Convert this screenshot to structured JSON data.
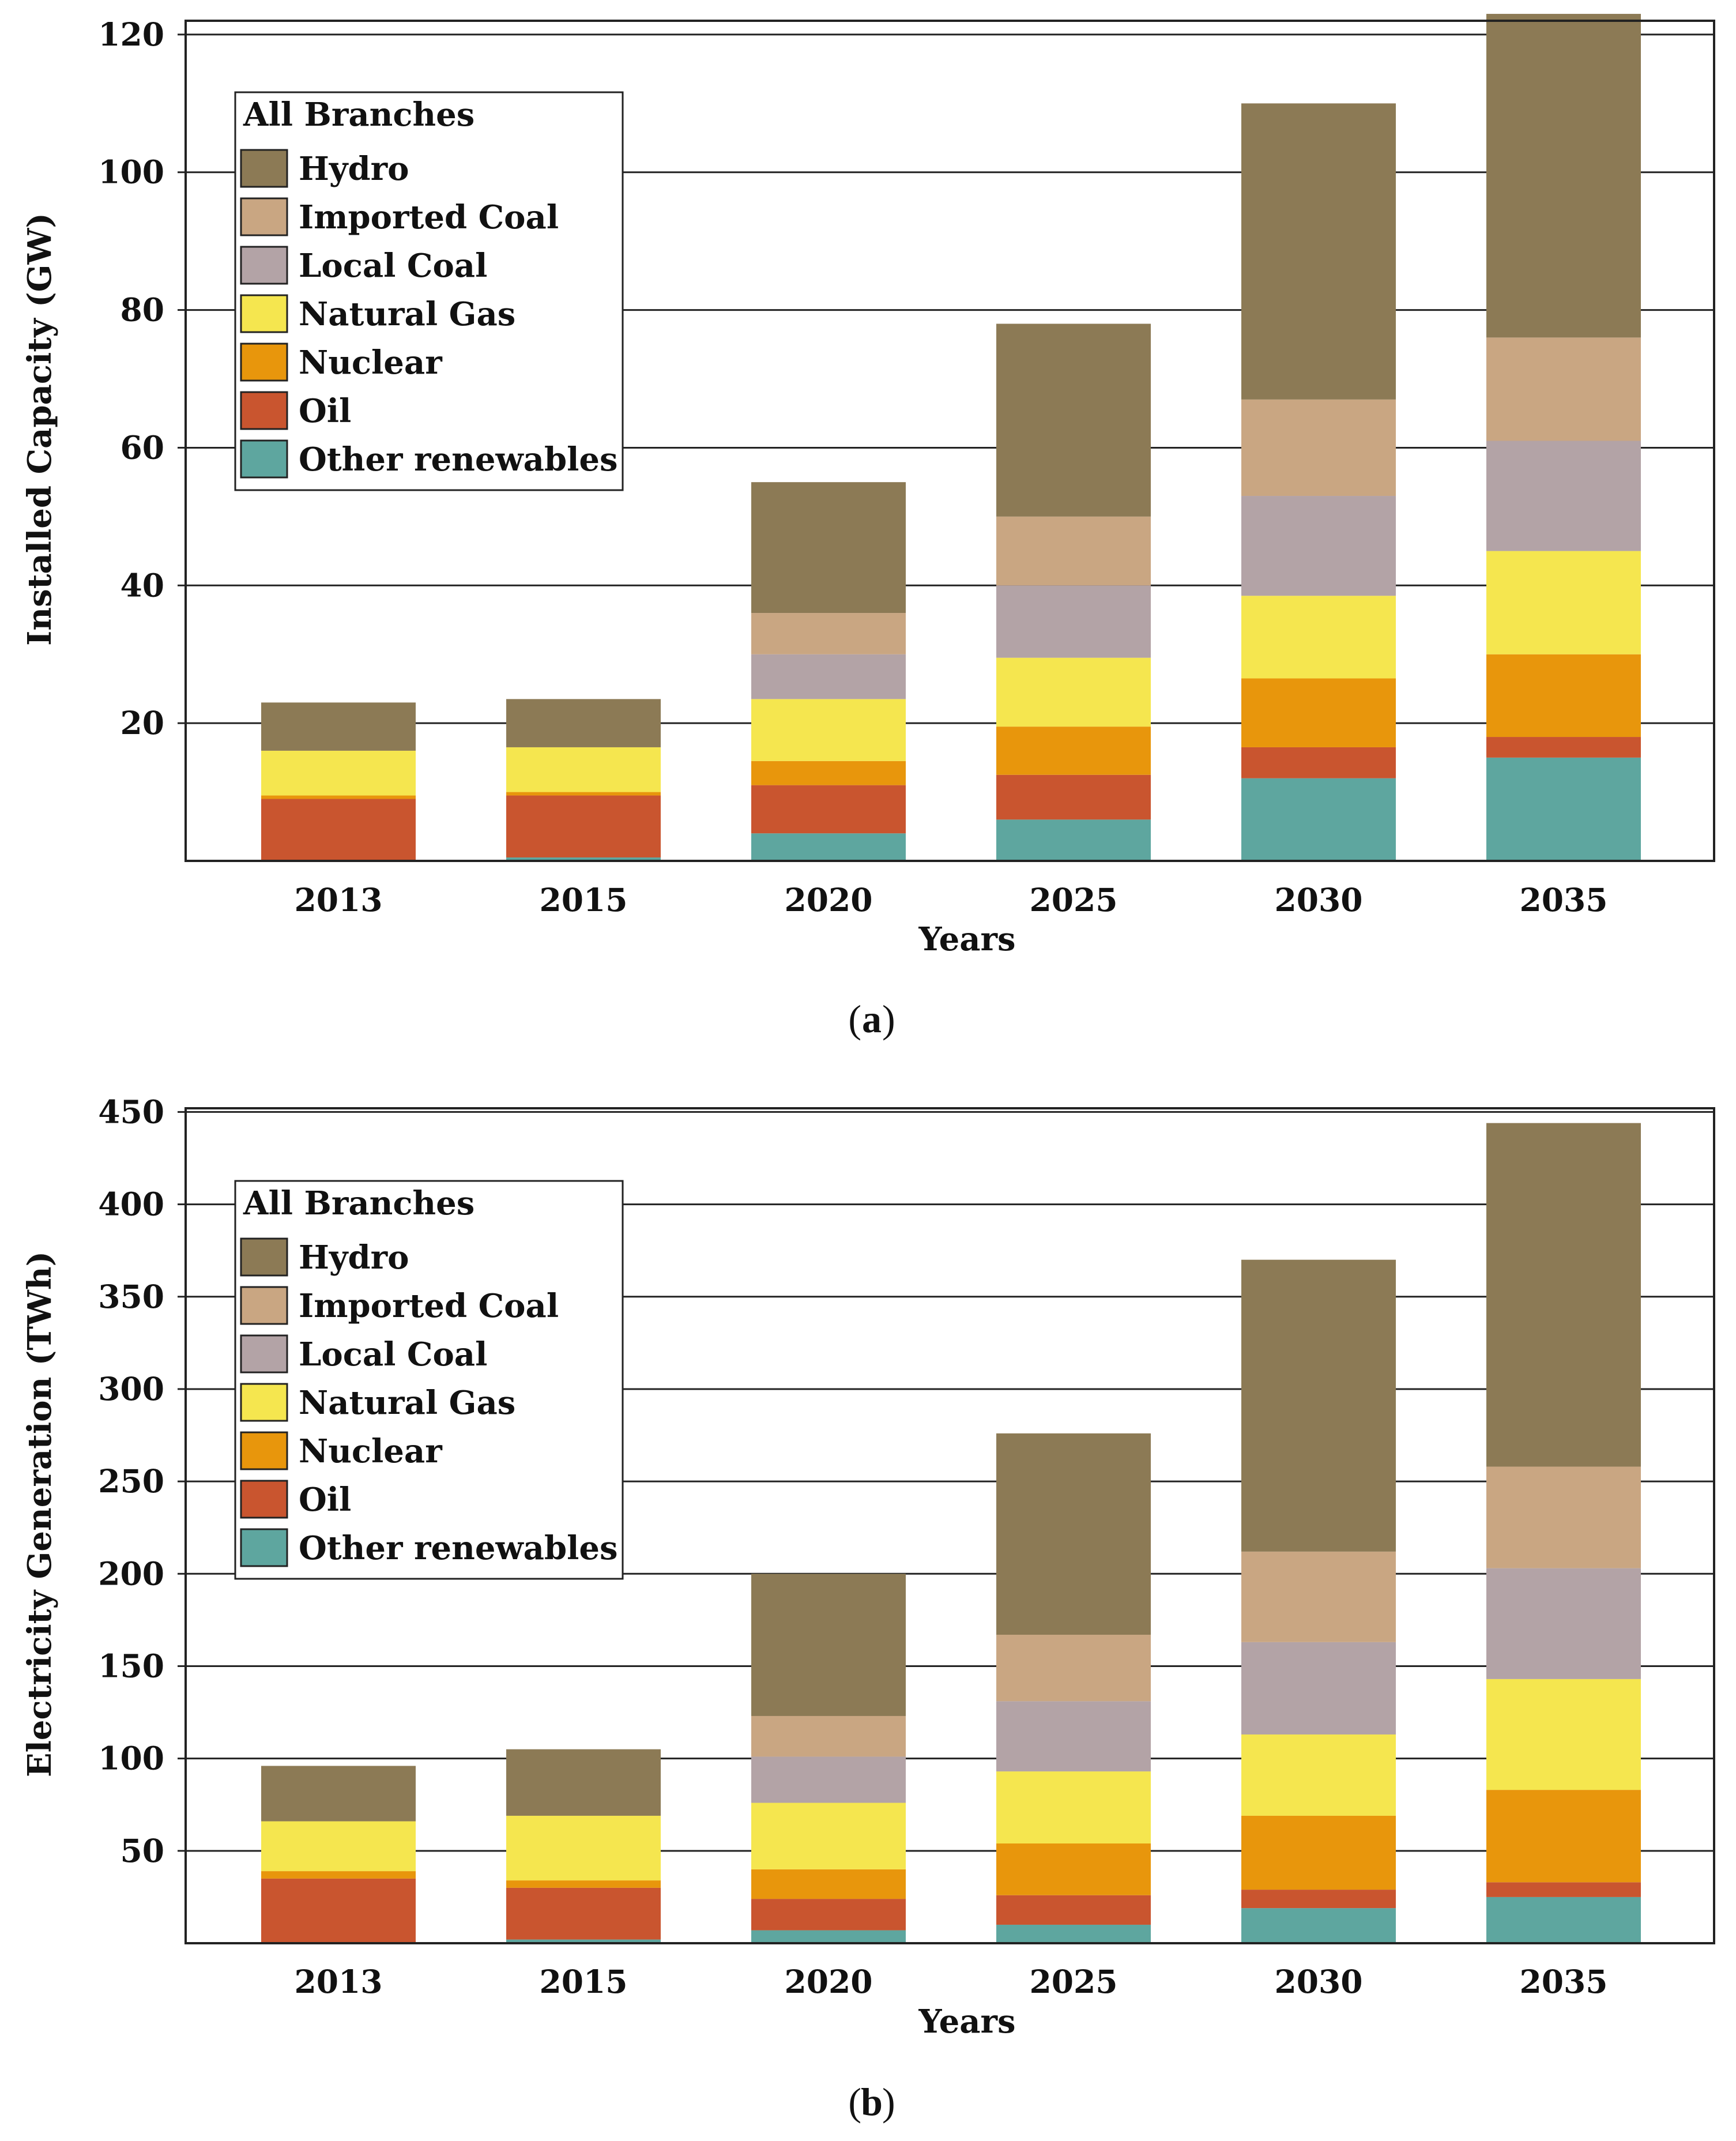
{
  "chart_data": [
    {
      "panel_label": "a",
      "type": "bar",
      "stacked": true,
      "xlabel": "Years",
      "ylabel": "Installed Capacity (GW)",
      "ylim": [
        0,
        122
      ],
      "yticks": [
        20,
        40,
        60,
        80,
        100,
        120
      ],
      "grid": true,
      "legend": {
        "title": "All Branches",
        "position": "top-left"
      },
      "categories": [
        "2013",
        "2015",
        "2020",
        "2025",
        "2030",
        "2035"
      ],
      "series": [
        {
          "name": "Other renewables",
          "color": "#5ea69f",
          "values": [
            0,
            0.5,
            4,
            6,
            12,
            15
          ]
        },
        {
          "name": "Oil",
          "color": "#c9552f",
          "values": [
            9,
            9,
            7,
            6.5,
            4.5,
            3
          ]
        },
        {
          "name": "Nuclear",
          "color": "#e8960c",
          "values": [
            0.5,
            0.5,
            3.5,
            7,
            10,
            12
          ]
        },
        {
          "name": "Natural Gas",
          "color": "#f5e64f",
          "values": [
            6.5,
            6.5,
            9,
            10,
            12,
            15
          ]
        },
        {
          "name": "Local Coal",
          "color": "#b3a3a6",
          "values": [
            0,
            0,
            6.5,
            10.5,
            14.5,
            16
          ]
        },
        {
          "name": "Imported Coal",
          "color": "#c9a682",
          "values": [
            0,
            0,
            6,
            10,
            14,
            15
          ]
        },
        {
          "name": "Hydro",
          "color": "#8c7a55",
          "values": [
            7,
            7,
            19,
            28,
            43,
            47
          ]
        }
      ]
    },
    {
      "panel_label": "b",
      "type": "bar",
      "stacked": true,
      "xlabel": "Years",
      "ylabel": "Electricity Generation (TWh)",
      "ylim": [
        0,
        452
      ],
      "yticks": [
        50,
        100,
        150,
        200,
        250,
        300,
        350,
        400,
        450
      ],
      "grid": true,
      "legend": {
        "title": "All Branches",
        "position": "top-left"
      },
      "categories": [
        "2013",
        "2015",
        "2020",
        "2025",
        "2030",
        "2035"
      ],
      "series": [
        {
          "name": "Other renewables",
          "color": "#5ea69f",
          "values": [
            0,
            2,
            7,
            10,
            19,
            25
          ]
        },
        {
          "name": "Oil",
          "color": "#c9552f",
          "values": [
            35,
            28,
            17,
            16,
            10,
            8
          ]
        },
        {
          "name": "Nuclear",
          "color": "#e8960c",
          "values": [
            4,
            4,
            16,
            28,
            40,
            50
          ]
        },
        {
          "name": "Natural Gas",
          "color": "#f5e64f",
          "values": [
            27,
            35,
            36,
            39,
            44,
            60
          ]
        },
        {
          "name": "Local Coal",
          "color": "#b3a3a6",
          "values": [
            0,
            0,
            25,
            38,
            50,
            60
          ]
        },
        {
          "name": "Imported Coal",
          "color": "#c9a682",
          "values": [
            0,
            0,
            22,
            36,
            49,
            55
          ]
        },
        {
          "name": "Hydro",
          "color": "#8c7a55",
          "values": [
            30,
            36,
            77,
            109,
            158,
            186
          ]
        }
      ]
    }
  ]
}
